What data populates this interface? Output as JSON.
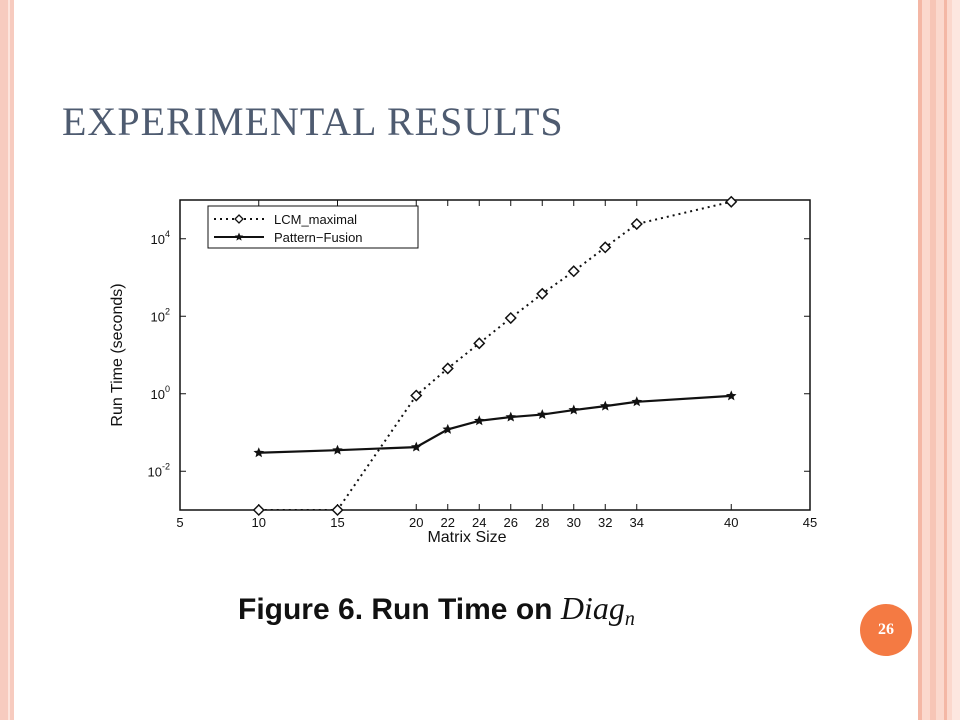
{
  "slide": {
    "title": "EXPERIMENTAL RESULTS",
    "page_number": "26"
  },
  "caption": {
    "prefix": "Figure 6. Run Time on ",
    "math_base": "Diag",
    "math_sub": "n"
  },
  "colors": {
    "title": "#4e5b70",
    "badge": "#f47a43",
    "border": "#f7cbbf"
  },
  "chart_data": {
    "type": "line",
    "title": "",
    "xlabel": "Matrix Size",
    "ylabel": "Run Time (seconds)",
    "x_ticks": [
      5,
      10,
      15,
      20,
      22,
      24,
      26,
      28,
      30,
      32,
      34,
      40,
      45
    ],
    "y_ticks": [
      {
        "value": 0.01,
        "base": "10",
        "exp": "-2"
      },
      {
        "value": 1,
        "base": "10",
        "exp": "0"
      },
      {
        "value": 100,
        "base": "10",
        "exp": "2"
      },
      {
        "value": 10000,
        "base": "10",
        "exp": "4"
      }
    ],
    "xlim": [
      5,
      45
    ],
    "ylim": [
      0.001,
      100000
    ],
    "yscale": "log",
    "legend": {
      "position": "top-left"
    },
    "series": [
      {
        "name": "LCM_maximal",
        "style": "dotted",
        "marker": "diamond",
        "points": [
          [
            10,
            0.001
          ],
          [
            15,
            0.001
          ],
          [
            20,
            0.9
          ],
          [
            22,
            4.5
          ],
          [
            24,
            20
          ],
          [
            26,
            90
          ],
          [
            28,
            380
          ],
          [
            30,
            1450
          ],
          [
            32,
            6000
          ],
          [
            34,
            24000
          ],
          [
            40,
            90000
          ]
        ]
      },
      {
        "name": "Pattern−Fusion",
        "style": "solid",
        "marker": "star",
        "points": [
          [
            10,
            0.03
          ],
          [
            15,
            0.035
          ],
          [
            20,
            0.042
          ],
          [
            22,
            0.12
          ],
          [
            24,
            0.2
          ],
          [
            26,
            0.25
          ],
          [
            28,
            0.29
          ],
          [
            30,
            0.38
          ],
          [
            32,
            0.48
          ],
          [
            34,
            0.62
          ],
          [
            40,
            0.88
          ]
        ]
      }
    ]
  }
}
